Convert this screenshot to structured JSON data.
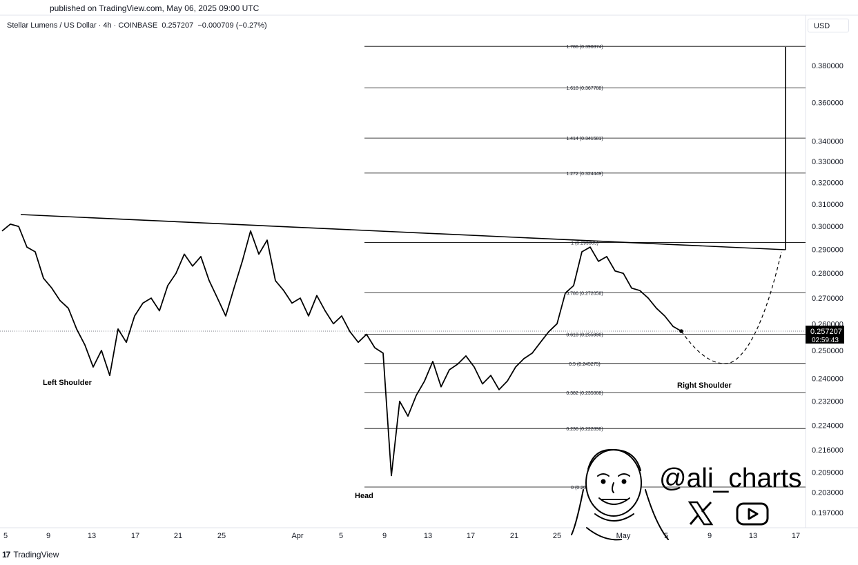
{
  "header": {
    "published": "published on TradingView.com, May 06, 2025 09:00 UTC",
    "symbol_line": "Stellar Lumens / US Dollar · 4h · COINBASE  0.257207  −0.000709 (−0.27%)",
    "currency": "USD"
  },
  "footer": {
    "brand": "TradingView",
    "brand_mark": "17"
  },
  "watermark": {
    "handle": "@ali_charts",
    "icons": [
      "x-logo-icon",
      "youtube-icon"
    ],
    "avatar": "caricature-avatar"
  },
  "price_tag": {
    "price": "0.257207",
    "countdown": "02:59:43"
  },
  "chart_data": {
    "type": "line",
    "title": "Stellar Lumens / US Dollar · 4h · COINBASE",
    "y_axis": {
      "ticks": [
        "0.380000",
        "0.360000",
        "0.340000",
        "0.330000",
        "0.320000",
        "0.310000",
        "0.300000",
        "0.290000",
        "0.280000",
        "0.270000",
        "0.260000",
        "0.250000",
        "0.240000",
        "0.232000",
        "0.224000",
        "0.216000",
        "0.209000",
        "0.203000",
        "0.197000"
      ],
      "scale": "log"
    },
    "x_axis": {
      "ticks": [
        "5",
        "9",
        "13",
        "17",
        "21",
        "25",
        "Apr",
        "5",
        "9",
        "13",
        "17",
        "21",
        "25",
        "May",
        "5",
        "9",
        "13",
        "17"
      ]
    },
    "fib_levels": [
      {
        "ratio": "1.786",
        "label": "1.786 (0.390874)",
        "price": 0.390874
      },
      {
        "ratio": "1.618",
        "label": "1.618 (0.367788)",
        "price": 0.367788
      },
      {
        "ratio": "1.414",
        "label": "1.414 (0.341581)",
        "price": 0.341581
      },
      {
        "ratio": "1.272",
        "label": "1.272 (0.324449)",
        "price": 0.324449
      },
      {
        "ratio": "1",
        "label": "1 (0.293005)",
        "price": 0.293005
      },
      {
        "ratio": "0.786",
        "label": "0.786 (0.272058)",
        "price": 0.272058
      },
      {
        "ratio": "0.618",
        "label": "0.618 (0.255990)",
        "price": 0.25599
      },
      {
        "ratio": "0.5",
        "label": "0.5 (0.245275)",
        "price": 0.245275
      },
      {
        "ratio": "0.382",
        "label": "0.382 (0.235008)",
        "price": 0.235008
      },
      {
        "ratio": "0.236",
        "label": "0.236 (0.222898)",
        "price": 0.222898
      },
      {
        "ratio": "0",
        "label": "0 (0.204525)",
        "price": 0.204525
      }
    ],
    "annotations": [
      "Left Shoulder",
      "Head",
      "Right Shoulder"
    ],
    "last_price": 0.257207,
    "change": "−0.000709 (−0.27%)",
    "series": [
      {
        "values": [
          0.298,
          0.301,
          0.3,
          0.291,
          0.289,
          0.278,
          0.274,
          0.269,
          0.266,
          0.258,
          0.252,
          0.244,
          0.25,
          0.241,
          0.258,
          0.253,
          0.263,
          0.268,
          0.27,
          0.265,
          0.275,
          0.28,
          0.288,
          0.283,
          0.287,
          0.277,
          0.27,
          0.263,
          0.274,
          0.285,
          0.298,
          0.288,
          0.294,
          0.277,
          0.273,
          0.268,
          0.27,
          0.263,
          0.271,
          0.265,
          0.26,
          0.263,
          0.257,
          0.253,
          0.256,
          0.251,
          0.249,
          0.208,
          0.232,
          0.227,
          0.234,
          0.239,
          0.246,
          0.237,
          0.243,
          0.245,
          0.248,
          0.244,
          0.238,
          0.241,
          0.236,
          0.239,
          0.244,
          0.247,
          0.249,
          0.253,
          0.257,
          0.26,
          0.272,
          0.275,
          0.289,
          0.291,
          0.285,
          0.287,
          0.281,
          0.28,
          0.274,
          0.273,
          0.27,
          0.266,
          0.263,
          0.259,
          0.257207
        ]
      }
    ]
  }
}
